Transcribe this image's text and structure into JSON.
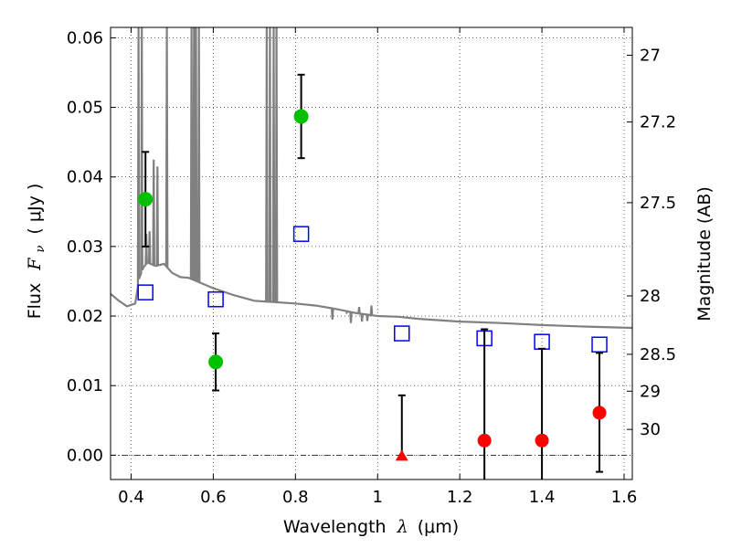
{
  "chart_data": {
    "type": "scatter",
    "xlabel": {
      "prefix": "Wavelength",
      "symbol": "λ",
      "units": "(μm)"
    },
    "ylabel": {
      "prefix": "Flux",
      "symbol": "F",
      "subscript": "ν",
      "units": "( μJy )"
    },
    "ylabel_right": "Magnitude (AB)",
    "xlim": [
      0.35,
      1.62
    ],
    "ylim": [
      -0.0035,
      0.0615
    ],
    "xticks": [
      {
        "v": 0.4,
        "label": "0.4"
      },
      {
        "v": 0.6,
        "label": "0.6"
      },
      {
        "v": 0.8,
        "label": "0.8"
      },
      {
        "v": 1.0,
        "label": "1"
      },
      {
        "v": 1.2,
        "label": "1.2"
      },
      {
        "v": 1.4,
        "label": "1.4"
      },
      {
        "v": 1.6,
        "label": "1.6"
      }
    ],
    "yticks": [
      {
        "v": 0.0,
        "label": "0.00"
      },
      {
        "v": 0.01,
        "label": "0.01"
      },
      {
        "v": 0.02,
        "label": "0.02"
      },
      {
        "v": 0.03,
        "label": "0.03"
      },
      {
        "v": 0.04,
        "label": "0.04"
      },
      {
        "v": 0.05,
        "label": "0.05"
      },
      {
        "v": 0.06,
        "label": "0.06"
      }
    ],
    "mag_ticks": [
      {
        "flux": 0.0575,
        "label": "27"
      },
      {
        "flux": 0.0479,
        "label": "27.2"
      },
      {
        "flux": 0.0363,
        "label": "27.5"
      },
      {
        "flux": 0.0229,
        "label": "28"
      },
      {
        "flux": 0.0145,
        "label": "28.5"
      },
      {
        "flux": 0.0092,
        "label": "29"
      },
      {
        "flux": 0.0037,
        "label": "30"
      }
    ],
    "grid": true,
    "colors": {
      "detection": "#00c000",
      "upper_limit": "#ff0000",
      "model": "#0000ff",
      "sed": "#808080"
    },
    "detections": [
      {
        "x": 0.435,
        "y": 0.0368,
        "yerr_low": 0.0068,
        "yerr_high": 0.0068
      },
      {
        "x": 0.606,
        "y": 0.0134,
        "yerr_low": 0.0041,
        "yerr_high": 0.0041
      },
      {
        "x": 0.814,
        "y": 0.0487,
        "yerr_low": 0.006,
        "yerr_high": 0.006
      }
    ],
    "non_detections": [
      {
        "x": 1.059,
        "y": 0.0,
        "marker": "triangle",
        "yerr_low": 0.0,
        "yerr_high": 0.0086
      },
      {
        "x": 1.26,
        "y": 0.0021,
        "marker": "circle",
        "yerr_low": 0.006,
        "yerr_high": 0.016
      },
      {
        "x": 1.4,
        "y": 0.0021,
        "marker": "circle",
        "yerr_low": 0.006,
        "yerr_high": 0.0132
      },
      {
        "x": 1.54,
        "y": 0.0061,
        "marker": "circle",
        "yerr_low": 0.0085,
        "yerr_high": 0.0086
      }
    ],
    "model_photometry": [
      {
        "x": 0.435,
        "y": 0.0234
      },
      {
        "x": 0.606,
        "y": 0.0224
      },
      {
        "x": 0.814,
        "y": 0.0318
      },
      {
        "x": 1.059,
        "y": 0.0175
      },
      {
        "x": 1.26,
        "y": 0.0168
      },
      {
        "x": 1.4,
        "y": 0.0163
      },
      {
        "x": 1.54,
        "y": 0.0159
      }
    ],
    "sed_continuum": [
      [
        0.35,
        0.0232
      ],
      [
        0.37,
        0.0222
      ],
      [
        0.39,
        0.0214
      ],
      [
        0.41,
        0.0218
      ],
      [
        0.42,
        0.0255
      ],
      [
        0.43,
        0.027
      ],
      [
        0.44,
        0.0277
      ],
      [
        0.46,
        0.0272
      ],
      [
        0.48,
        0.0275
      ],
      [
        0.5,
        0.0262
      ],
      [
        0.52,
        0.0256
      ],
      [
        0.54,
        0.0255
      ],
      [
        0.56,
        0.025
      ],
      [
        0.58,
        0.0245
      ],
      [
        0.6,
        0.024
      ],
      [
        0.65,
        0.023
      ],
      [
        0.7,
        0.0222
      ],
      [
        0.75,
        0.022
      ],
      [
        0.8,
        0.0218
      ],
      [
        0.85,
        0.0215
      ],
      [
        0.9,
        0.021
      ],
      [
        0.95,
        0.0204
      ],
      [
        1.0,
        0.02
      ],
      [
        1.05,
        0.0199
      ],
      [
        1.1,
        0.0196
      ],
      [
        1.2,
        0.0192
      ],
      [
        1.3,
        0.019
      ],
      [
        1.4,
        0.0187
      ],
      [
        1.5,
        0.0185
      ],
      [
        1.62,
        0.0183
      ]
    ],
    "sed_emission_lines": [
      {
        "x": 0.418,
        "peak": 0.0615
      },
      {
        "x": 0.426,
        "peak": 0.0615
      },
      {
        "x": 0.437,
        "peak": 0.0318
      },
      {
        "x": 0.445,
        "peak": 0.0322
      },
      {
        "x": 0.455,
        "peak": 0.0425
      },
      {
        "x": 0.464,
        "peak": 0.0415
      },
      {
        "x": 0.487,
        "peak": 0.0615
      },
      {
        "x": 0.547,
        "peak": 0.0615
      },
      {
        "x": 0.553,
        "peak": 0.0615
      },
      {
        "x": 0.558,
        "peak": 0.0615
      },
      {
        "x": 0.565,
        "peak": 0.0615
      },
      {
        "x": 0.73,
        "peak": 0.0615
      },
      {
        "x": 0.738,
        "peak": 0.0615
      },
      {
        "x": 0.747,
        "peak": 0.0615
      },
      {
        "x": 0.754,
        "peak": 0.0615
      },
      {
        "x": 0.925,
        "peak": 0.0205
      },
      {
        "x": 0.955,
        "peak": 0.0213
      },
      {
        "x": 0.985,
        "peak": 0.0215
      }
    ],
    "sed_absorption_lines": [
      {
        "x": 0.89,
        "depth": 0.0195
      },
      {
        "x": 0.935,
        "depth": 0.019
      },
      {
        "x": 0.962,
        "depth": 0.0192
      },
      {
        "x": 0.975,
        "depth": 0.0193
      }
    ]
  }
}
